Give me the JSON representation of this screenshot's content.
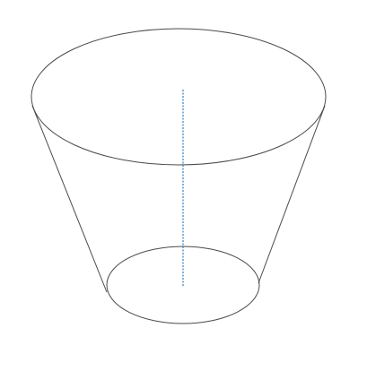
{
  "diagram": {
    "subject": "frustum-of-cone",
    "colors": {
      "background": "#ffffff",
      "outline": "#4a4a4a",
      "axis": "#2f7fc0"
    }
  }
}
